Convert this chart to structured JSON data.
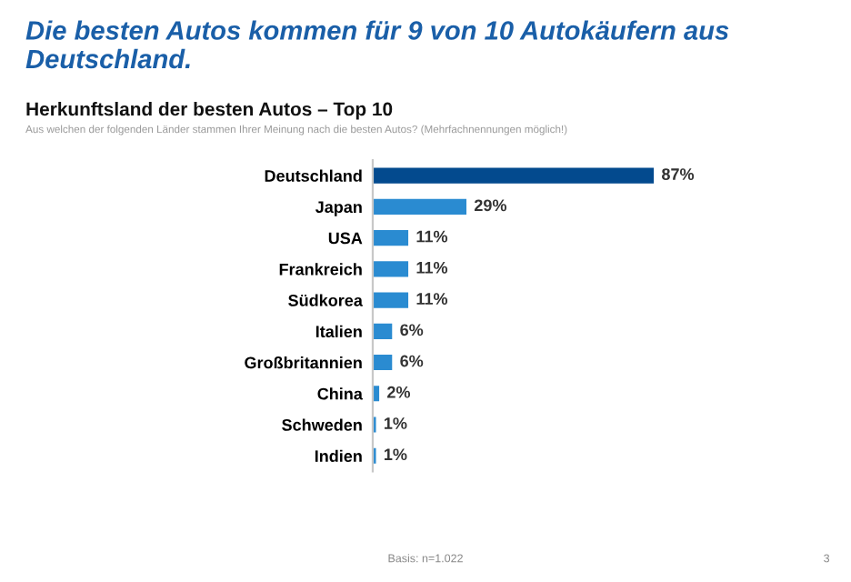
{
  "chart_data": {
    "type": "bar",
    "orientation": "horizontal",
    "title": "Die besten Autos kommen für 9 von 10 Autokäufern aus Deutschland.",
    "subtitle": "Herkunftsland der besten Autos – Top 10",
    "annotations": [
      "Aus welchen der folgenden Länder stammen Ihrer Meinung nach die besten Autos? (Mehrfachnennungen möglich!)",
      "Basis: n=1.022",
      "3"
    ],
    "categories": [
      "Deutschland",
      "Japan",
      "USA",
      "Frankreich",
      "Südkorea",
      "Italien",
      "Großbritannien",
      "China",
      "Schweden",
      "Indien"
    ],
    "values": [
      87,
      29,
      11,
      11,
      11,
      6,
      6,
      2,
      1,
      1
    ],
    "colors": [
      "#034a8e",
      "#2a8bd1",
      "#2a8bd1",
      "#2a8bd1",
      "#2a8bd1",
      "#2a8bd1",
      "#2a8bd1",
      "#2a8bd1",
      "#2a8bd1",
      "#2a8bd1"
    ],
    "value_labels": [
      "87%",
      "29%",
      "11%",
      "11%",
      "11%",
      "6%",
      "6%",
      "2%",
      "1%",
      "1%"
    ],
    "tick_labels": "y",
    "grid": false,
    "legend": false
  }
}
